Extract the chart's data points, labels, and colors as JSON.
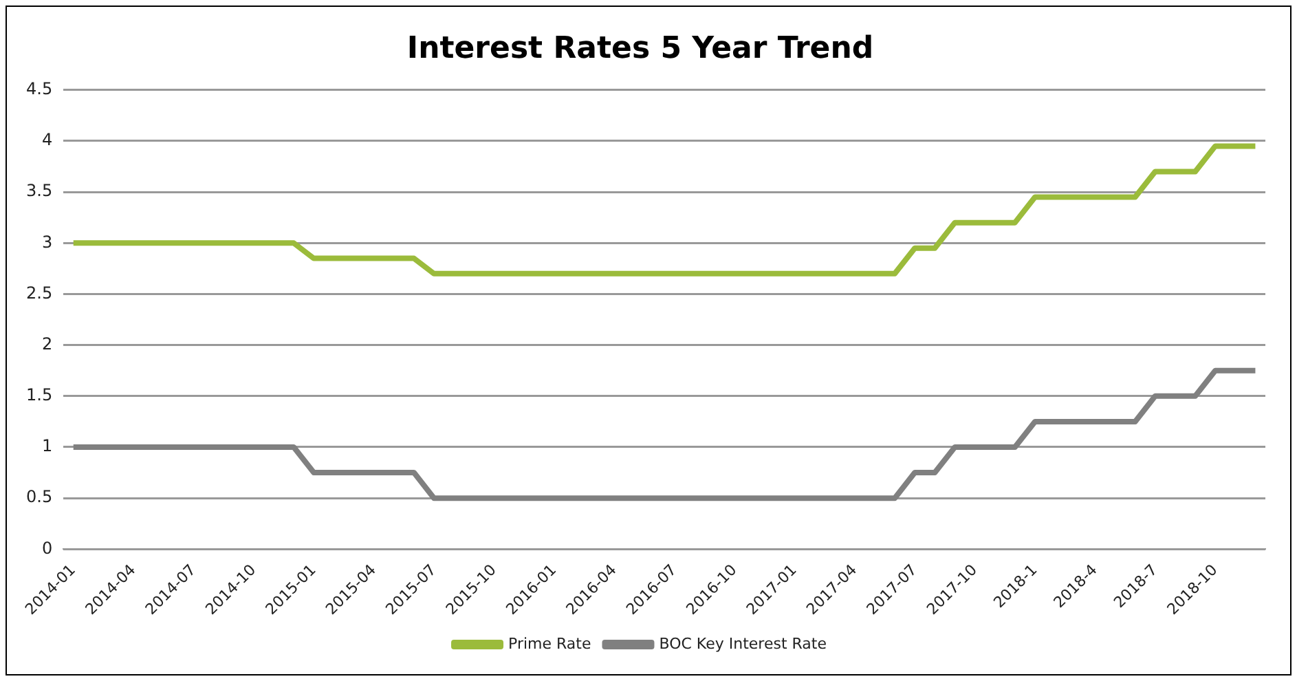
{
  "chart_data": {
    "type": "line",
    "title": "Interest Rates 5 Year Trend",
    "categories": [
      "2014-01",
      null,
      null,
      "2014-04",
      null,
      null,
      "2014-07",
      null,
      null,
      "2014-10",
      null,
      null,
      "2015-01",
      null,
      null,
      "2015-04",
      null,
      null,
      "2015-07",
      null,
      null,
      "2015-10",
      null,
      null,
      "2016-01",
      null,
      null,
      "2016-04",
      null,
      null,
      "2016-07",
      null,
      null,
      "2016-10",
      null,
      null,
      "2017-01",
      null,
      null,
      "2017-04",
      null,
      null,
      "2017-07",
      null,
      null,
      "2017-10",
      null,
      null,
      "2018-1",
      null,
      null,
      "2018-4",
      null,
      null,
      "2018-7",
      null,
      null,
      "2018-10",
      null,
      null
    ],
    "series": [
      {
        "name": "Prime Rate",
        "color": "#9bbb3b",
        "values": [
          3,
          3,
          3,
          3,
          3,
          3,
          3,
          3,
          3,
          3,
          3,
          3,
          2.85,
          2.85,
          2.85,
          2.85,
          2.85,
          2.85,
          2.7,
          2.7,
          2.7,
          2.7,
          2.7,
          2.7,
          2.7,
          2.7,
          2.7,
          2.7,
          2.7,
          2.7,
          2.7,
          2.7,
          2.7,
          2.7,
          2.7,
          2.7,
          2.7,
          2.7,
          2.7,
          2.7,
          2.7,
          2.7,
          2.95,
          2.95,
          3.2,
          3.2,
          3.2,
          3.2,
          3.45,
          3.45,
          3.45,
          3.45,
          3.45,
          3.45,
          3.7,
          3.7,
          3.7,
          3.95,
          3.95,
          3.95
        ]
      },
      {
        "name": "BOC Key Interest Rate",
        "color": "#808080",
        "values": [
          1,
          1,
          1,
          1,
          1,
          1,
          1,
          1,
          1,
          1,
          1,
          1,
          0.75,
          0.75,
          0.75,
          0.75,
          0.75,
          0.75,
          0.5,
          0.5,
          0.5,
          0.5,
          0.5,
          0.5,
          0.5,
          0.5,
          0.5,
          0.5,
          0.5,
          0.5,
          0.5,
          0.5,
          0.5,
          0.5,
          0.5,
          0.5,
          0.5,
          0.5,
          0.5,
          0.5,
          0.5,
          0.5,
          0.75,
          0.75,
          1,
          1,
          1,
          1,
          1.25,
          1.25,
          1.25,
          1.25,
          1.25,
          1.25,
          1.5,
          1.5,
          1.5,
          1.75,
          1.75,
          1.75
        ]
      }
    ],
    "ylim": [
      0,
      4.5
    ],
    "yticks": [
      0,
      0.5,
      1,
      1.5,
      2,
      2.5,
      3,
      3.5,
      4,
      4.5
    ],
    "grid": "y",
    "legend": "bottom",
    "marker": "none",
    "line_style": "solid"
  }
}
